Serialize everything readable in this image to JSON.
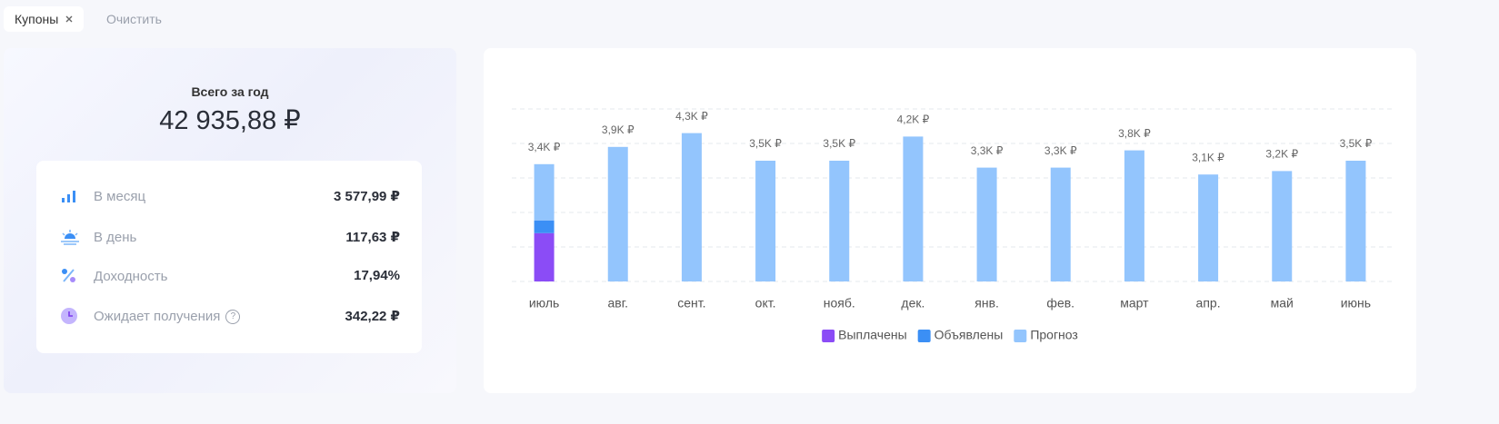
{
  "filters": {
    "chip": "Купоны",
    "clear": "Очистить"
  },
  "summary": {
    "title": "Всего за год",
    "total": "42 935,88 ₽",
    "hint": "?",
    "rows": [
      {
        "label": "В месяц",
        "value": "3 577,99 ₽"
      },
      {
        "label": "В день",
        "value": "117,63 ₽"
      },
      {
        "label": "Доходность",
        "value": "17,94%"
      },
      {
        "label": "Ожидает получения",
        "value": "342,22 ₽"
      }
    ]
  },
  "chart_data": {
    "type": "bar",
    "stacked": true,
    "categories": [
      "июль",
      "авг.",
      "сент.",
      "окт.",
      "нояб.",
      "дек.",
      "янв.",
      "фев.",
      "март",
      "апр.",
      "май",
      "июнь"
    ],
    "series": [
      {
        "name": "Выплачены",
        "color": "#8b4cf6",
        "values": [
          1400,
          null,
          null,
          null,
          null,
          null,
          null,
          null,
          null,
          null,
          null,
          null
        ]
      },
      {
        "name": "Объявлены",
        "color": "#3b8ff5",
        "values": [
          370,
          null,
          null,
          null,
          null,
          null,
          null,
          null,
          null,
          null,
          null,
          null
        ]
      },
      {
        "name": "Прогноз",
        "color": "#93c5fd",
        "values": [
          1630,
          3900,
          4300,
          3500,
          3500,
          4200,
          3300,
          3300,
          3800,
          3100,
          3200,
          3500
        ]
      }
    ],
    "totals": [
      3400,
      3900,
      4300,
      3500,
      3500,
      4200,
      3300,
      3300,
      3800,
      3100,
      3200,
      3500
    ],
    "total_labels": [
      "3,4K ₽",
      "3,9K ₽",
      "4,3K ₽",
      "3,5K ₽",
      "3,5K ₽",
      "4,2K ₽",
      "3,3K ₽",
      "3,3K ₽",
      "3,8K ₽",
      "3,1K ₽",
      "3,2K ₽",
      "3,5K ₽"
    ],
    "ylim": [
      0,
      5000
    ],
    "yticks": [
      0,
      1000,
      2000,
      3000,
      4000,
      5000
    ],
    "grid": true,
    "legend": "bottom"
  }
}
